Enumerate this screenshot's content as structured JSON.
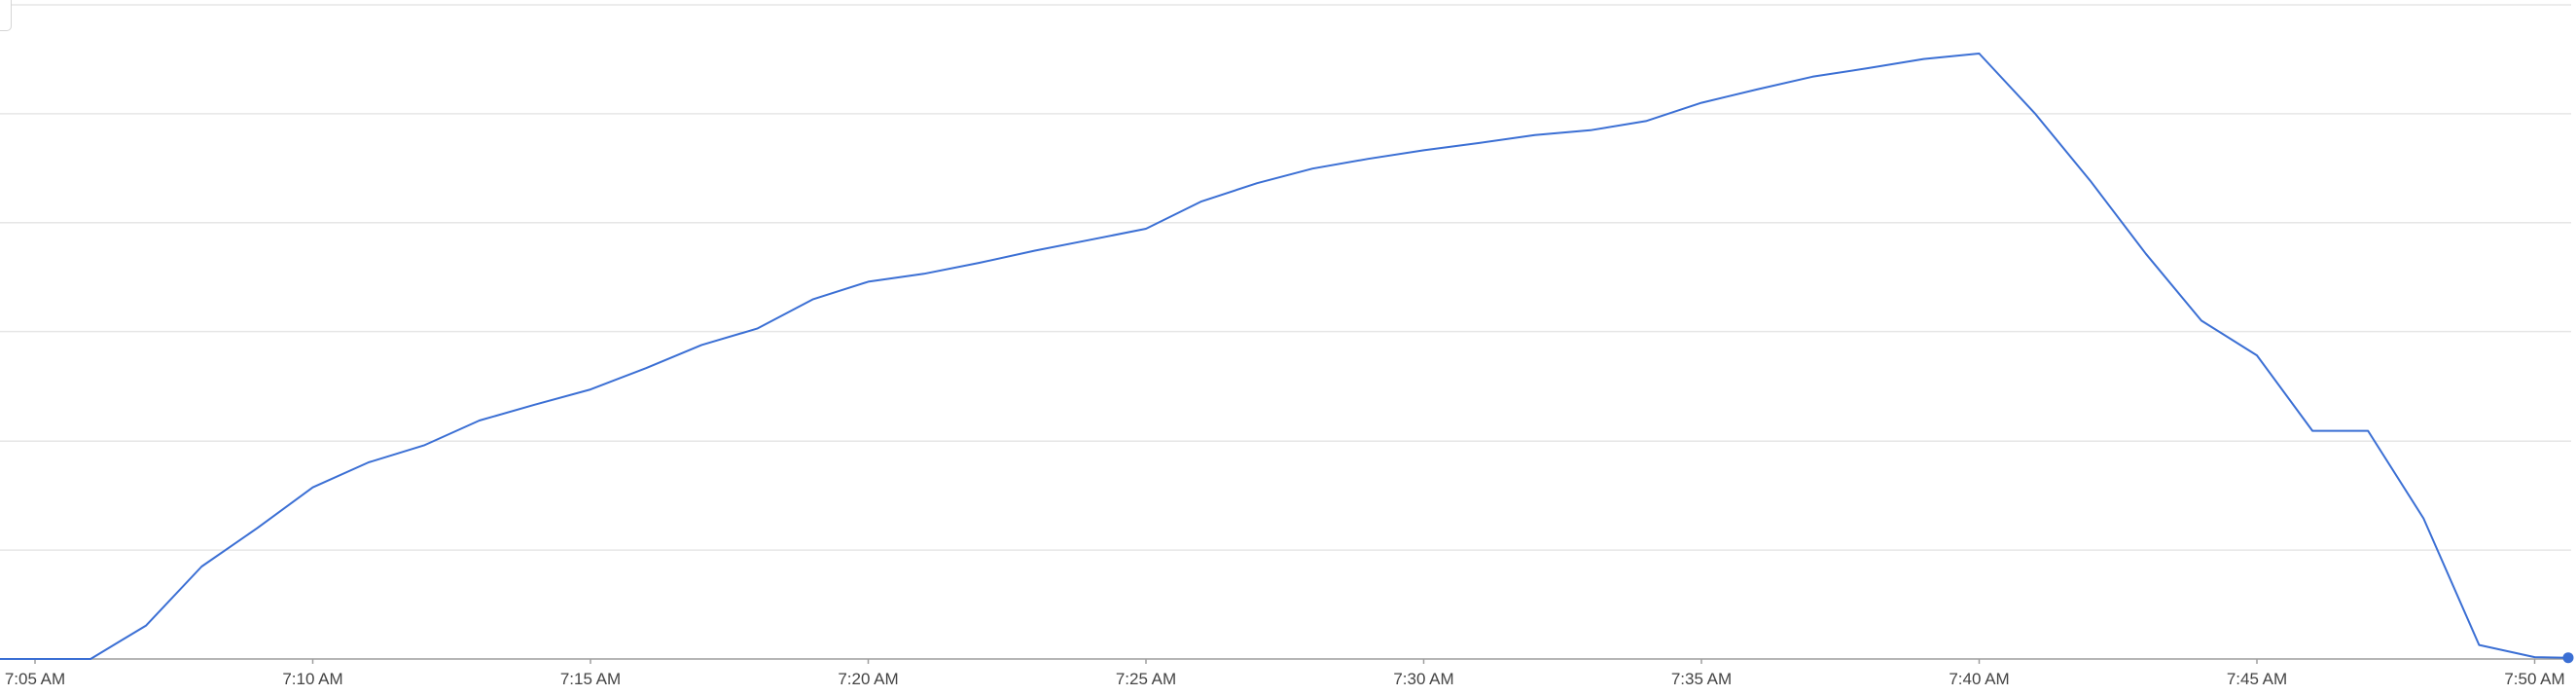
{
  "chart_data": {
    "type": "line",
    "title": "",
    "xlabel": "",
    "ylabel": "",
    "grid": true,
    "x_tick_labels": [
      "7:05 AM",
      "7:10 AM",
      "7:15 AM",
      "7:20 AM",
      "7:25 AM",
      "7:30 AM",
      "7:35 AM",
      "7:40 AM",
      "7:45 AM",
      "7:50 AM"
    ],
    "x": [
      "7:04 AM",
      "7:05 AM",
      "7:06 AM",
      "7:07 AM",
      "7:08 AM",
      "7:09 AM",
      "7:10 AM",
      "7:11 AM",
      "7:12 AM",
      "7:13 AM",
      "7:14 AM",
      "7:15 AM",
      "7:16 AM",
      "7:17 AM",
      "7:18 AM",
      "7:19 AM",
      "7:20 AM",
      "7:21 AM",
      "7:22 AM",
      "7:23 AM",
      "7:24 AM",
      "7:25 AM",
      "7:26 AM",
      "7:27 AM",
      "7:28 AM",
      "7:29 AM",
      "7:30 AM",
      "7:31 AM",
      "7:32 AM",
      "7:33 AM",
      "7:34 AM",
      "7:35 AM",
      "7:36 AM",
      "7:37 AM",
      "7:38 AM",
      "7:39 AM",
      "7:40 AM",
      "7:41 AM",
      "7:42 AM",
      "7:43 AM",
      "7:44 AM",
      "7:45 AM",
      "7:46 AM",
      "7:47 AM",
      "7:48 AM",
      "7:49 AM",
      "7:50 AM",
      "7:51 AM"
    ],
    "x_minutes": [
      4,
      5,
      6,
      7,
      8,
      9,
      10,
      11,
      12,
      13,
      14,
      15,
      16,
      17,
      18,
      19,
      20,
      21,
      22,
      23,
      24,
      25,
      26,
      27,
      28,
      29,
      30,
      31,
      32,
      33,
      34,
      35,
      36,
      37,
      38,
      39,
      40,
      41,
      42,
      43,
      44,
      45,
      46,
      47,
      48,
      49,
      50,
      51
    ],
    "series": [
      {
        "color": "#3b6fd4",
        "values": [
          0.0,
          0.0,
          0.0,
          5.5,
          15.2,
          21.5,
          28.2,
          32.3,
          35.1,
          39.2,
          41.8,
          44.3,
          47.8,
          51.6,
          54.3,
          59.1,
          62.0,
          63.3,
          65.1,
          67.1,
          68.9,
          70.7,
          75.2,
          78.2,
          80.6,
          82.2,
          83.6,
          84.8,
          86.1,
          86.9,
          88.4,
          91.4,
          93.6,
          95.7,
          97.1,
          98.6,
          99.5,
          89.7,
          78.6,
          66.6,
          55.6,
          49.9,
          37.5,
          37.5,
          23.1,
          2.3,
          0.3,
          0.2
        ]
      }
    ],
    "x_range_minutes": [
      4,
      51
    ],
    "ylim": [
      0,
      107.5
    ],
    "y_gridlines": [
      0,
      17.9,
      35.8,
      53.8,
      71.7,
      89.6,
      107.5
    ],
    "last_point_marker": true
  }
}
